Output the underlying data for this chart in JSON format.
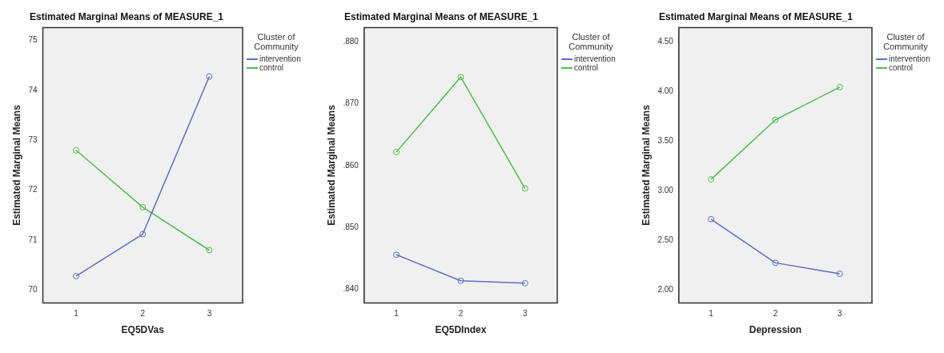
{
  "chart_data": [
    {
      "type": "line",
      "title": "Estimated Marginal Means of MEASURE_1",
      "xlabel": "EQ5DVas",
      "ylabel": "Estimated Marginal Means",
      "legend_title": "Cluster of Community",
      "legend": "right",
      "marker": "circle",
      "categories": [
        "1",
        "2",
        "3"
      ],
      "ylim": [
        69.74,
        75.26
      ],
      "yticks": [
        70,
        71,
        72,
        73,
        74,
        75
      ],
      "series": [
        {
          "name": "intervention",
          "color": "#5b6fc4",
          "values": [
            70.28,
            71.12,
            74.28
          ]
        },
        {
          "name": "control",
          "color": "#4cc04c",
          "values": [
            72.8,
            71.66,
            70.8
          ]
        }
      ]
    },
    {
      "type": "line",
      "title": "Estimated Marginal Means of MEASURE_1",
      "xlabel": "EQ5DIndex",
      "ylabel": "Estimated Marginal Means",
      "legend_title": "Cluster of Community",
      "legend": "right",
      "marker": "circle",
      "categories": [
        "1",
        "2",
        "3"
      ],
      "ylim": [
        0.8378,
        0.8823
      ],
      "yticks": [
        {
          "value": 0.84,
          "label": ".840"
        },
        {
          "value": 0.85,
          "label": ".850"
        },
        {
          "value": 0.86,
          "label": ".860"
        },
        {
          "value": 0.87,
          "label": ".870"
        },
        {
          "value": 0.88,
          "label": ".880"
        }
      ],
      "series": [
        {
          "name": "intervention",
          "color": "#5b6fc4",
          "values": [
            0.8456,
            0.8414,
            0.841
          ]
        },
        {
          "name": "control",
          "color": "#4cc04c",
          "values": [
            0.8622,
            0.8743,
            0.8563
          ]
        }
      ]
    },
    {
      "type": "line",
      "title": "Estimated Marginal Means of MEASURE_1",
      "xlabel": "Depression",
      "ylabel": "Estimated Marginal Means",
      "legend_title": "Cluster of Community",
      "legend": "right",
      "marker": "circle",
      "categories": [
        "1",
        "2",
        "3"
      ],
      "ylim": [
        1.865,
        4.64
      ],
      "yticks": [
        {
          "value": 2,
          "label": "2.00"
        },
        {
          "value": 2.5,
          "label": "2.50"
        },
        {
          "value": 3,
          "label": "3.00"
        },
        {
          "value": 3.5,
          "label": "3.50"
        },
        {
          "value": 4,
          "label": "4.00"
        },
        {
          "value": 4.5,
          "label": "4.50"
        }
      ],
      "series": [
        {
          "name": "intervention",
          "color": "#5b6fc4",
          "values": [
            2.71,
            2.27,
            2.16
          ]
        },
        {
          "name": "control",
          "color": "#4cc04c",
          "values": [
            3.11,
            3.71,
            4.04
          ]
        }
      ]
    }
  ]
}
